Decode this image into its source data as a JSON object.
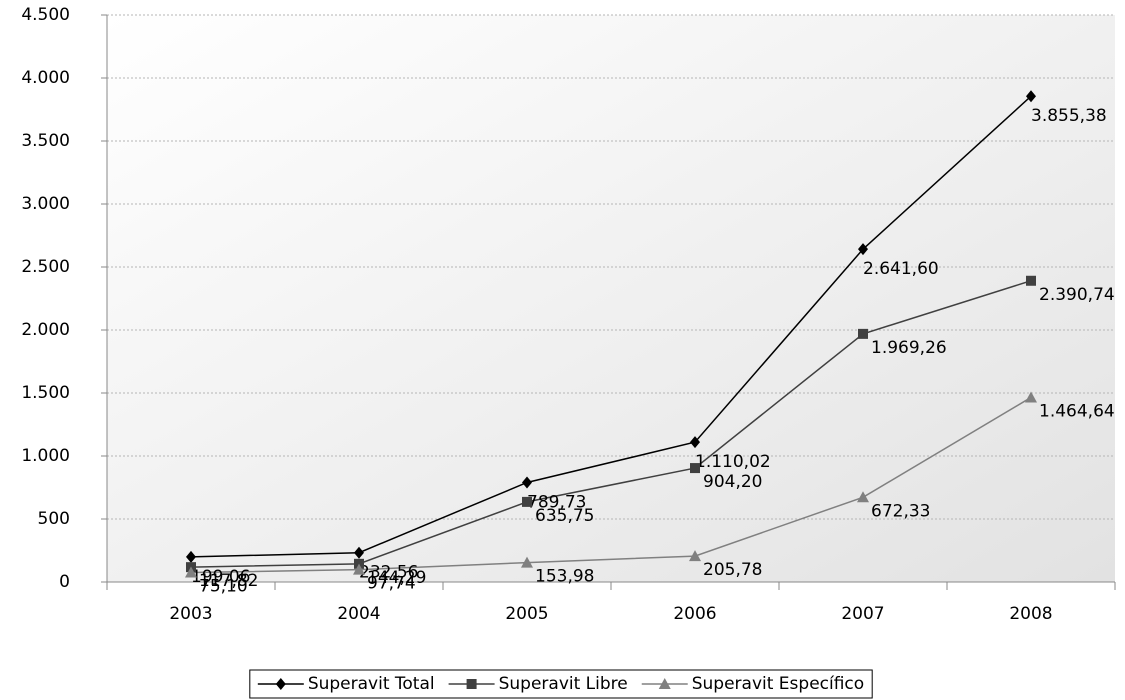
{
  "chart_data": {
    "type": "line",
    "categories": [
      "2003",
      "2004",
      "2005",
      "2006",
      "2007",
      "2008"
    ],
    "series": [
      {
        "name": "Superavit Total",
        "color": "#000000",
        "marker": "diamond",
        "values": [
          199.06,
          232.56,
          789.73,
          1110.02,
          2641.6,
          3855.38
        ],
        "value_labels": [
          "199,06",
          "232,56",
          "789,73",
          "1.110,02",
          "2.641,60",
          "3.855,38"
        ]
      },
      {
        "name": "Superavit Libre",
        "color": "#404040",
        "marker": "square",
        "values": [
          117.82,
          144.29,
          635.75,
          904.2,
          1969.26,
          2390.74
        ],
        "value_labels": [
          "117,82",
          "144,29",
          "635,75",
          "904,20",
          "1.969,26",
          "2.390,74"
        ]
      },
      {
        "name": "Superavit Específico",
        "color": "#808080",
        "marker": "triangle",
        "values": [
          75.1,
          97.74,
          153.98,
          205.78,
          672.33,
          1464.64
        ],
        "value_labels": [
          "75,10",
          "97,74",
          "153,98",
          "205,78",
          "672,33",
          "1.464,64"
        ]
      }
    ],
    "ylim": [
      0,
      4500
    ],
    "yticks": [
      0,
      500,
      {
        "value": 1000,
        "label": "1.000"
      },
      {
        "value": 1500,
        "label": "1.500"
      },
      {
        "value": 2000,
        "label": "2.000"
      },
      {
        "value": 2500,
        "label": "2.500"
      },
      {
        "value": 3000,
        "label": "3.000"
      },
      {
        "value": 3500,
        "label": "3.500"
      },
      {
        "value": 4000,
        "label": "4.000"
      },
      {
        "value": 4500,
        "label": "4.500"
      }
    ],
    "grid": true,
    "legend": "bottom"
  }
}
